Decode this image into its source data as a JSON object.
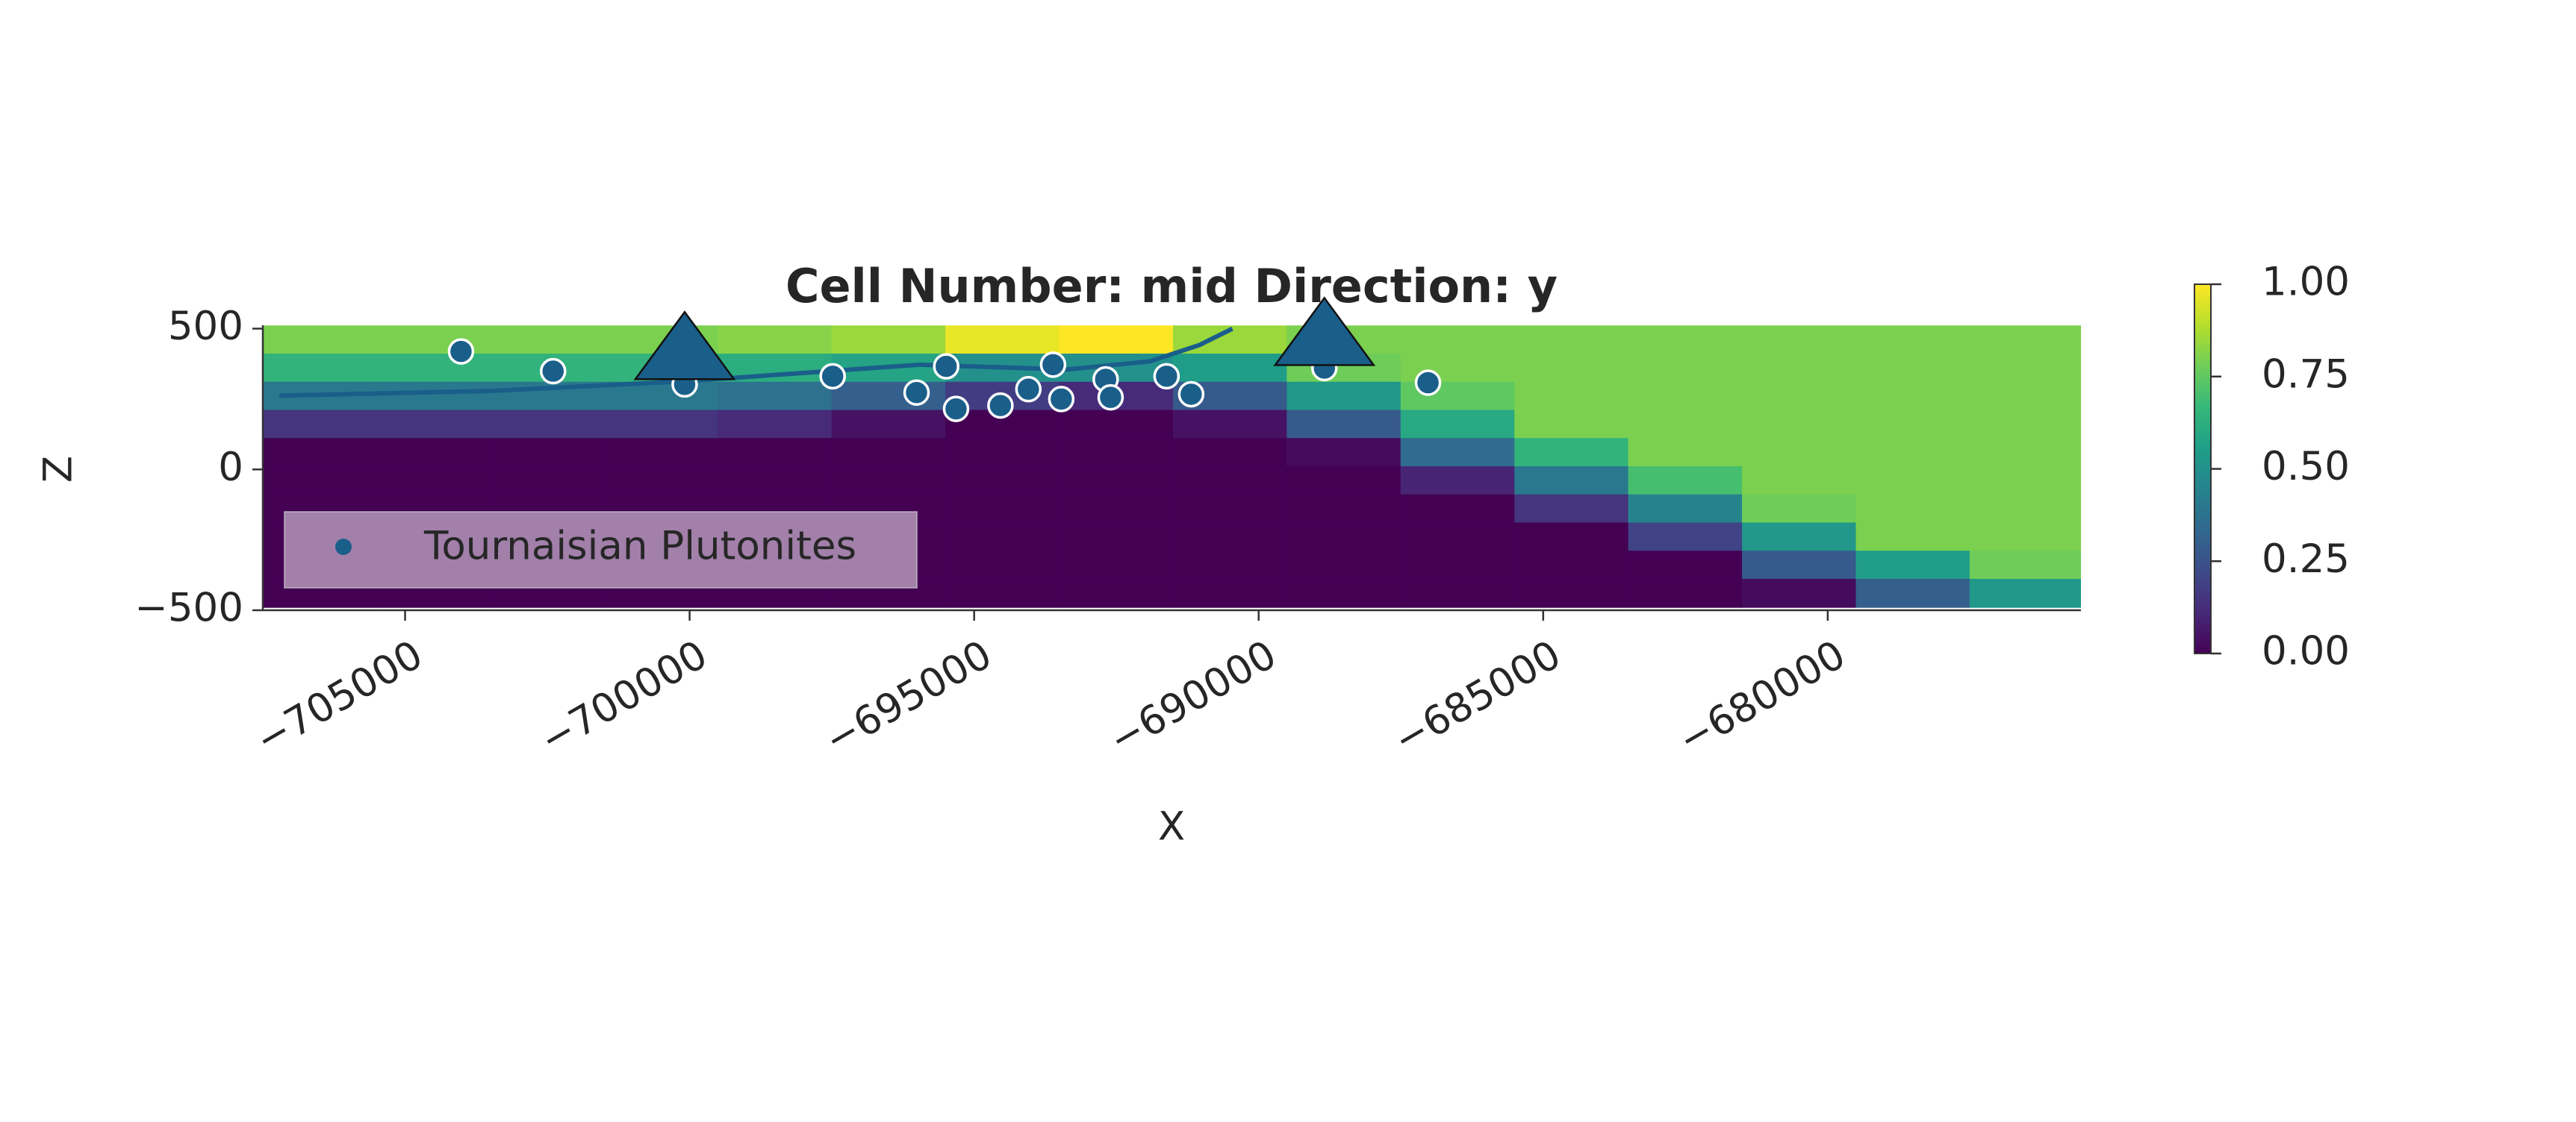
{
  "chart_data": {
    "type": "section",
    "title": "Cell Number: mid Direction: y",
    "xlabel": "X",
    "ylabel": "Z",
    "xlim": [
      -707500,
      -675550
    ],
    "ylim": [
      -500,
      512
    ],
    "xticks": [
      {
        "value": -705000,
        "label": "−705000"
      },
      {
        "value": -700000,
        "label": "−700000"
      },
      {
        "value": -695000,
        "label": "−695000"
      },
      {
        "value": -690000,
        "label": "−690000"
      },
      {
        "value": -685000,
        "label": "−685000"
      },
      {
        "value": -680000,
        "label": "−680000"
      }
    ],
    "yticks": [
      {
        "value": 500,
        "label": "500"
      },
      {
        "value": 0,
        "label": "0"
      },
      {
        "value": -500,
        "label": "−500"
      }
    ],
    "field": {
      "x": [
        -706500,
        -704500,
        -702500,
        -700500,
        -698500,
        -696500,
        -694500,
        -692500,
        -690500,
        -688500,
        -686500,
        -684500,
        -682500,
        -680500,
        -678500,
        -676500
      ],
      "z": [
        460,
        360,
        260,
        160,
        60,
        -40,
        -140,
        -240,
        -340,
        -440
      ],
      "values": [
        [
          0.8,
          0.8,
          0.8,
          0.8,
          0.82,
          0.85,
          0.97,
          1.0,
          0.85,
          0.8,
          0.8,
          0.8,
          0.8,
          0.8,
          0.8,
          0.8
        ],
        [
          0.65,
          0.65,
          0.65,
          0.65,
          0.62,
          0.58,
          0.5,
          0.5,
          0.55,
          0.78,
          0.8,
          0.8,
          0.8,
          0.8,
          0.8,
          0.8
        ],
        [
          0.4,
          0.4,
          0.4,
          0.4,
          0.37,
          0.3,
          0.18,
          0.12,
          0.28,
          0.53,
          0.75,
          0.8,
          0.8,
          0.8,
          0.8,
          0.8
        ],
        [
          0.15,
          0.15,
          0.15,
          0.15,
          0.12,
          0.05,
          0,
          0,
          0.05,
          0.28,
          0.6,
          0.8,
          0.8,
          0.8,
          0.8,
          0.8
        ],
        [
          0,
          0,
          0,
          0,
          0,
          0,
          0,
          0,
          0,
          0.03,
          0.35,
          0.65,
          0.8,
          0.8,
          0.8,
          0.8
        ],
        [
          0,
          0,
          0,
          0,
          0,
          0,
          0,
          0,
          0,
          0,
          0.1,
          0.4,
          0.7,
          0.8,
          0.8,
          0.8
        ],
        [
          0,
          0,
          0,
          0,
          0,
          0,
          0,
          0,
          0,
          0,
          0,
          0.15,
          0.45,
          0.78,
          0.8,
          0.8
        ],
        [
          0,
          0,
          0,
          0,
          0,
          0,
          0,
          0,
          0,
          0,
          0,
          0,
          0.2,
          0.53,
          0.8,
          0.8
        ],
        [
          0,
          0,
          0,
          0,
          0,
          0,
          0,
          0,
          0,
          0,
          0,
          0,
          0,
          0.28,
          0.55,
          0.78
        ],
        [
          0,
          0,
          0,
          0,
          0,
          0,
          0,
          0,
          0,
          0,
          0,
          0,
          0,
          0.03,
          0.3,
          0.53
        ]
      ]
    },
    "surface": {
      "color": "#1a5e8a",
      "x": [
        -707211,
        -703468,
        -700000,
        -695954,
        -693353,
        -691908,
        -691040,
        -690462
      ],
      "z": [
        262,
        279,
        314,
        372,
        355,
        384,
        442,
        500
      ]
    },
    "orientations": {
      "color": "#1a5e8a",
      "x": [
        -700087,
        -688845
      ],
      "z": [
        400,
        450
      ]
    },
    "series": [
      {
        "name": "Tournaisian Plutonites",
        "color": "#1a5e8a",
        "x": [
          -704017,
          -702399,
          -700087,
          -697486,
          -696012,
          -695491,
          -695318,
          -694538,
          -694047,
          -693613,
          -693469,
          -692689,
          -692602,
          -691619,
          -691186,
          -688845,
          -687024
        ],
        "values": [
          419,
          349,
          302,
          331,
          273,
          366,
          215,
          227,
          285,
          372,
          250,
          320,
          256,
          331,
          267,
          360,
          308
        ]
      }
    ],
    "legend": "lower left",
    "colorbar": {
      "lim": [
        0,
        1
      ],
      "ticks": [
        {
          "value": 0,
          "label": "0.00"
        },
        {
          "value": 0.25,
          "label": "0.25"
        },
        {
          "value": 0.5,
          "label": "0.50"
        },
        {
          "value": 0.75,
          "label": "0.75"
        },
        {
          "value": 1,
          "label": "1.00"
        }
      ]
    }
  }
}
